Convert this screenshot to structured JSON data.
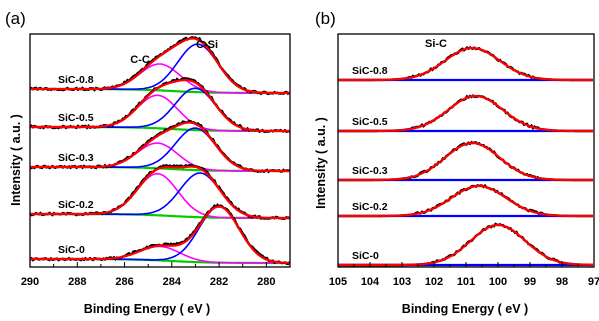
{
  "chart_data": [
    {
      "type": "line",
      "panel_label": "(a)",
      "xlabel": "Binding Energy ( eV )",
      "ylabel": "Intensity ( a.u. )",
      "xlim": [
        290,
        279
      ],
      "x_reversed": true,
      "x_ticks": [
        290,
        288,
        286,
        284,
        282,
        280
      ],
      "y_ticks_shown": false,
      "grid": false,
      "annotations": [
        "C-C",
        "C-Si"
      ],
      "colors": {
        "measured": "#000000",
        "fit_envelope": "#ff0000",
        "c_c_component": "#ff00ff",
        "c_si_component": "#0000ff",
        "background": "#00cc00"
      },
      "samples": [
        {
          "name": "SiC-0.8",
          "components": [
            {
              "label": "C-C",
              "center": 284.5,
              "relative_height": 0.55
            },
            {
              "label": "C-Si",
              "center": 282.9,
              "relative_height": 1.0
            }
          ]
        },
        {
          "name": "SiC-0.5",
          "components": [
            {
              "label": "C-C",
              "center": 284.6,
              "relative_height": 0.75
            },
            {
              "label": "C-Si",
              "center": 283.0,
              "relative_height": 0.95
            }
          ]
        },
        {
          "name": "SiC-0.3",
          "components": [
            {
              "label": "C-C",
              "center": 284.6,
              "relative_height": 0.6
            },
            {
              "label": "C-Si",
              "center": 283.0,
              "relative_height": 1.0
            }
          ]
        },
        {
          "name": "SiC-0.2",
          "components": [
            {
              "label": "C-C",
              "center": 284.6,
              "relative_height": 0.8
            },
            {
              "label": "C-Si",
              "center": 282.8,
              "relative_height": 0.85
            }
          ]
        },
        {
          "name": "SiC-0",
          "components": [
            {
              "label": "C-C",
              "center": 284.5,
              "relative_height": 0.25
            },
            {
              "label": "C-Si",
              "center": 282.0,
              "relative_height": 1.0
            }
          ]
        }
      ]
    },
    {
      "type": "line",
      "panel_label": "(b)",
      "xlabel": "Binding Energy ( eV )",
      "ylabel": "Intensity ( a.u. )",
      "xlim": [
        105,
        97
      ],
      "x_reversed": true,
      "x_ticks": [
        105,
        104,
        103,
        102,
        101,
        100,
        99,
        98,
        97
      ],
      "y_ticks_shown": false,
      "grid": false,
      "annotations": [
        "Si-C"
      ],
      "colors": {
        "measured": "#000000",
        "fit_envelope": "#ff0000",
        "background": "#0000ff"
      },
      "samples": [
        {
          "name": "SiC-0.8",
          "peak_center": 100.8,
          "peak_label": "Si-C"
        },
        {
          "name": "SiC-0.5",
          "peak_center": 100.7,
          "peak_label": "Si-C"
        },
        {
          "name": "SiC-0.3",
          "peak_center": 100.8,
          "peak_label": "Si-C"
        },
        {
          "name": "SiC-0.2",
          "peak_center": 100.6,
          "peak_label": "Si-C"
        },
        {
          "name": "SiC-0",
          "peak_center": 100.0,
          "peak_label": "Si-C"
        }
      ]
    }
  ]
}
